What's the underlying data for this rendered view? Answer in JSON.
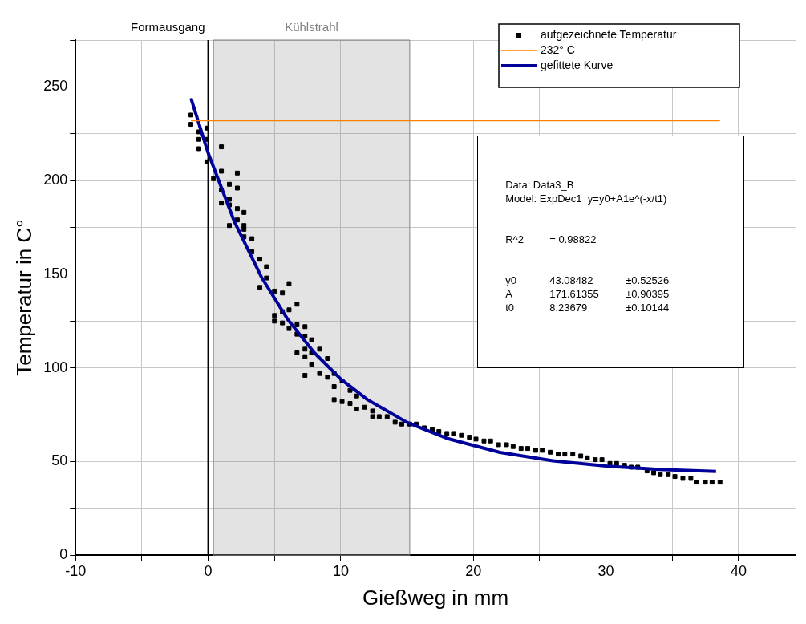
{
  "chart_data": {
    "type": "scatter",
    "xlabel": "Gießweg in mm",
    "ylabel": "Temperatur in C°",
    "xlim": [
      -10,
      44.3
    ],
    "ylim": [
      0,
      275
    ],
    "xticks": [
      -10,
      {
        "value": -5,
        "label": null
      },
      0,
      {
        "value": 5,
        "label": null
      },
      10,
      {
        "value": 15,
        "label": null
      },
      20,
      {
        "value": 25,
        "label": null
      },
      30,
      {
        "value": 35,
        "label": null
      },
      40
    ],
    "yticks": [
      0,
      {
        "value": 25,
        "label": null
      },
      50,
      {
        "value": 75,
        "label": null
      },
      100,
      {
        "value": 125,
        "label": null
      },
      150,
      {
        "value": 175,
        "label": null
      },
      200,
      {
        "value": 225,
        "label": null
      },
      250,
      {
        "value": 275,
        "label": null
      }
    ],
    "grid": true,
    "legend": "top right",
    "series": [
      {
        "name": "aufgezeichnete Temperatur",
        "color": "#000000",
        "marker": "square",
        "x": [
          -1.3,
          -1.3,
          -0.7,
          -0.7,
          -0.7,
          -0.1,
          -0.1,
          -0.1,
          1.0,
          0.4,
          1.0,
          1.0,
          1.0,
          1.6,
          1.6,
          1.6,
          2.2,
          2.2,
          2.2,
          1.6,
          2.2,
          2.7,
          2.7,
          2.7,
          2.7,
          3.3,
          3.3,
          3.9,
          4.4,
          4.4,
          3.9,
          5.0,
          5.6,
          5.6,
          6.1,
          6.7,
          5.0,
          6.1,
          5.0,
          5.6,
          6.1,
          6.7,
          6.7,
          7.3,
          7.3,
          7.3,
          6.7,
          7.3,
          7.3,
          7.8,
          7.8,
          7.8,
          8.4,
          8.4,
          9.0,
          9.0,
          9.5,
          9.5,
          9.5,
          10.1,
          10.1,
          10.7,
          10.7,
          11.2,
          11.2,
          11.8,
          12.4,
          12.4,
          12.9,
          13.5,
          14.1,
          14.6,
          15.2,
          15.7,
          16.3,
          16.9,
          17.4,
          18.0,
          18.5,
          19.1,
          19.7,
          20.2,
          20.8,
          21.3,
          21.9,
          22.5,
          23.0,
          23.6,
          24.1,
          24.7,
          25.2,
          25.8,
          26.4,
          26.9,
          27.5,
          28.1,
          28.6,
          29.2,
          29.7,
          30.3,
          30.8,
          31.4,
          31.9,
          32.4,
          33.1,
          33.6,
          34.1,
          34.7,
          35.2,
          35.8,
          36.4,
          36.8,
          37.5,
          38.0,
          38.6
        ],
        "values": [
          235,
          230,
          226,
          222,
          217,
          228,
          222,
          210,
          218,
          201,
          205,
          195,
          188,
          198,
          190,
          187,
          204,
          196,
          185,
          176,
          179,
          183,
          176,
          174,
          170,
          169,
          162,
          158,
          154,
          148,
          143,
          141,
          140,
          130,
          145,
          134,
          128,
          131,
          125,
          124,
          121,
          123,
          118,
          122,
          117,
          110,
          108,
          106,
          96,
          115,
          108,
          102,
          110,
          97,
          105,
          95,
          97,
          90,
          83,
          93,
          82,
          88,
          81,
          85,
          78,
          79,
          77,
          74,
          74,
          74,
          71,
          70,
          70,
          70,
          68,
          67,
          66,
          65,
          65,
          64,
          63,
          62,
          61,
          61,
          59,
          59,
          58,
          57,
          57,
          56,
          56,
          55,
          54,
          54,
          54,
          53,
          52,
          51,
          51,
          49,
          49,
          48,
          47,
          47,
          45,
          44,
          43,
          43,
          42,
          41,
          41,
          39,
          39,
          39,
          39
        ]
      },
      {
        "name": "232° C",
        "type": "line",
        "color": "#ff8000",
        "line_style": "solid",
        "marker": "none",
        "x": [
          -1.3,
          38.6
        ],
        "values": [
          232,
          232
        ]
      },
      {
        "name": "gefittete Kurve",
        "type": "line",
        "color": "#00009a",
        "line_style": "solid",
        "marker": "none",
        "x": [
          -1.3,
          0,
          2,
          4,
          6,
          8,
          10,
          12,
          15,
          18,
          22,
          26,
          30,
          34,
          38.3
        ],
        "values": [
          244.0,
          214.7,
          177.7,
          148.7,
          125.9,
          108.1,
          94.0,
          83.1,
          70.9,
          62.4,
          54.9,
          50.4,
          47.6,
          45.8,
          44.7
        ]
      }
    ],
    "ref_lines": [
      {
        "axis": "x",
        "value": 0,
        "label": "Formausgang",
        "color": "#000000",
        "line_style": "solid"
      }
    ],
    "bands": [
      {
        "axis": "x",
        "from": 0.4,
        "to": 15.2,
        "label": "Kühlstrahl",
        "color": "#808080"
      }
    ],
    "annotations": [
      "Data: Data3_B",
      "Model: ExpDec1  y=y0+A1e^(-x/t1)",
      "R^2\t= 0.98822",
      "y0\t43.08482\t±0.52526",
      "A\t171.61355\t±0.90395",
      "t0\t8.23679\t±0.10144"
    ]
  }
}
